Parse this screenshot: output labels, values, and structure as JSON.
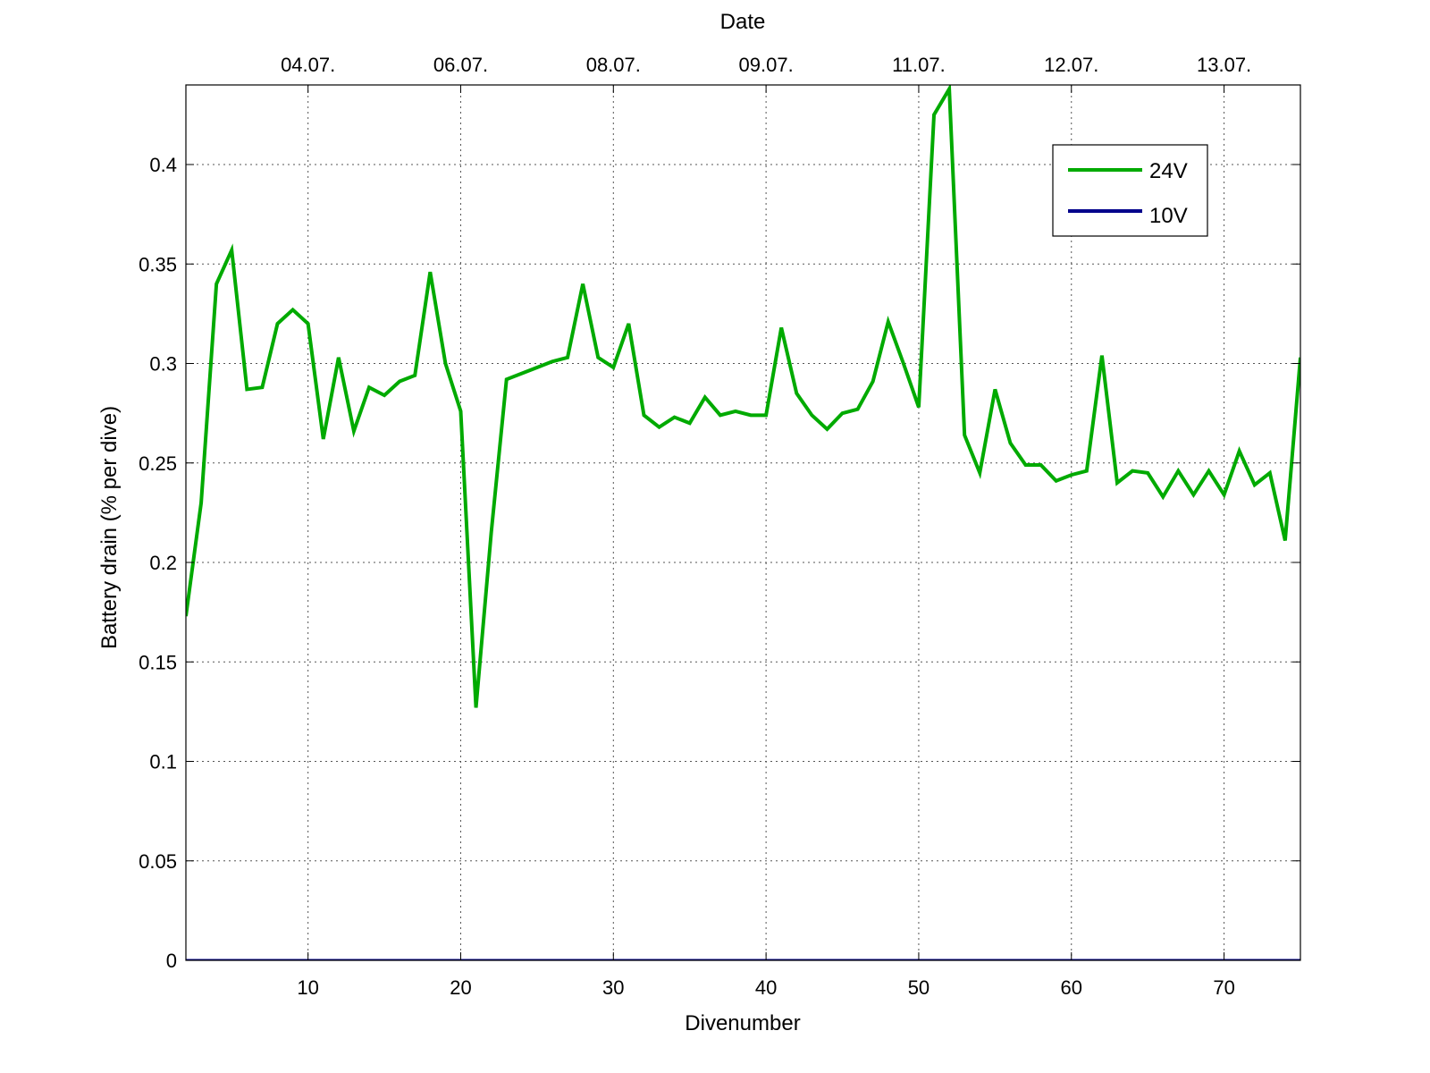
{
  "chart_data": {
    "type": "line",
    "title": "",
    "xlabel": "Divenumber",
    "ylabel": "Battery drain (% per dive)",
    "top_xlabel": "Date",
    "xlim": [
      2,
      75
    ],
    "ylim": [
      0,
      0.44
    ],
    "xticks": [
      10,
      20,
      30,
      40,
      50,
      60,
      70
    ],
    "xtick_labels": [
      "10",
      "20",
      "30",
      "40",
      "50",
      "60",
      "70"
    ],
    "yticks": [
      0,
      0.05,
      0.1,
      0.15,
      0.2,
      0.25,
      0.3,
      0.35,
      0.4
    ],
    "ytick_labels": [
      "0",
      "0.05",
      "0.1",
      "0.15",
      "0.2",
      "0.25",
      "0.3",
      "0.35",
      "0.4"
    ],
    "top_ticks": [
      {
        "x": 10,
        "label": "04.07."
      },
      {
        "x": 20,
        "label": "06.07."
      },
      {
        "x": 30,
        "label": "08.07."
      },
      {
        "x": 40,
        "label": "09.07."
      },
      {
        "x": 50,
        "label": "11.07."
      },
      {
        "x": 60,
        "label": "12.07."
      },
      {
        "x": 70,
        "label": "13.07."
      }
    ],
    "grid": true,
    "legend_position": "top-right",
    "series": [
      {
        "name": "24V",
        "color": "#00aa00",
        "x": [
          2,
          3,
          4,
          5,
          6,
          7,
          8,
          9,
          10,
          11,
          12,
          13,
          14,
          15,
          16,
          17,
          18,
          19,
          20,
          21,
          22,
          23,
          24,
          25,
          26,
          27,
          28,
          29,
          30,
          31,
          32,
          33,
          34,
          35,
          36,
          37,
          38,
          39,
          40,
          41,
          42,
          43,
          44,
          45,
          46,
          47,
          48,
          49,
          50,
          51,
          52,
          53,
          54,
          55,
          56,
          57,
          58,
          59,
          60,
          61,
          62,
          63,
          64,
          65,
          66,
          67,
          68,
          69,
          70,
          71,
          72,
          73,
          74,
          75
        ],
        "values": [
          0.173,
          0.23,
          0.34,
          0.357,
          0.287,
          0.288,
          0.32,
          0.327,
          0.32,
          0.262,
          0.303,
          0.266,
          0.288,
          0.284,
          0.291,
          0.294,
          0.346,
          0.3,
          0.276,
          0.127,
          0.215,
          0.292,
          0.295,
          0.298,
          0.301,
          0.303,
          0.34,
          0.303,
          0.298,
          0.32,
          0.274,
          0.268,
          0.273,
          0.27,
          0.283,
          0.274,
          0.276,
          0.274,
          0.274,
          0.318,
          0.285,
          0.274,
          0.267,
          0.275,
          0.277,
          0.291,
          0.321,
          0.3,
          0.278,
          0.425,
          0.438,
          0.264,
          0.245,
          0.287,
          0.26,
          0.249,
          0.249,
          0.241,
          0.244,
          0.246,
          0.304,
          0.24,
          0.246,
          0.245,
          0.233,
          0.246,
          0.234,
          0.246,
          0.234,
          0.256,
          0.239,
          0.245,
          0.211,
          0.303
        ]
      },
      {
        "name": "10V",
        "color": "#00008b",
        "x": [
          2,
          75
        ],
        "values": [
          0,
          0
        ]
      }
    ]
  }
}
